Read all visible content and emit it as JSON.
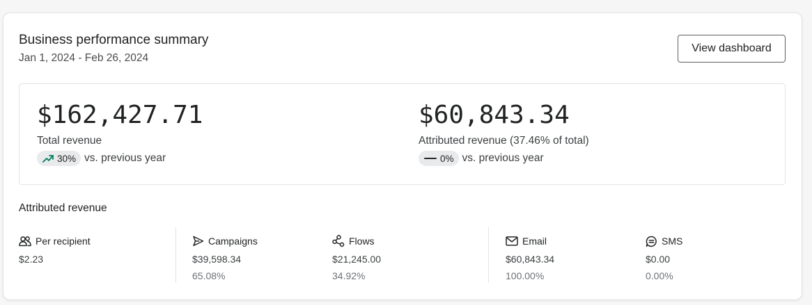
{
  "header": {
    "title": "Business performance summary",
    "date_range": "Jan 1, 2024 - Feb 26, 2024",
    "view_button": "View dashboard"
  },
  "metrics": [
    {
      "value": "$162,427.71",
      "label": "Total revenue",
      "change": "30%",
      "change_icon": "trend-up-icon",
      "change_color": "#007f5f",
      "comparison": "vs. previous year"
    },
    {
      "value": "$60,843.34",
      "label": "Attributed revenue (37.46% of total)",
      "change": "0%",
      "change_icon": "dash-icon",
      "change_color": "#202223",
      "comparison": "vs. previous year"
    }
  ],
  "attributed": {
    "title": "Attributed revenue",
    "columns": [
      {
        "label": "Per recipient",
        "icon": "people-icon",
        "amount": "$2.23",
        "percent": ""
      },
      {
        "label": "Campaigns",
        "icon": "send-icon",
        "amount": "$39,598.34",
        "percent": "65.08%"
      },
      {
        "label": "Flows",
        "icon": "flows-icon",
        "amount": "$21,245.00",
        "percent": "34.92%"
      },
      {
        "label": "Email",
        "icon": "mail-icon",
        "amount": "$60,843.34",
        "percent": "100.00%"
      },
      {
        "label": "SMS",
        "icon": "sms-icon",
        "amount": "$0.00",
        "percent": "0.00%"
      }
    ]
  }
}
